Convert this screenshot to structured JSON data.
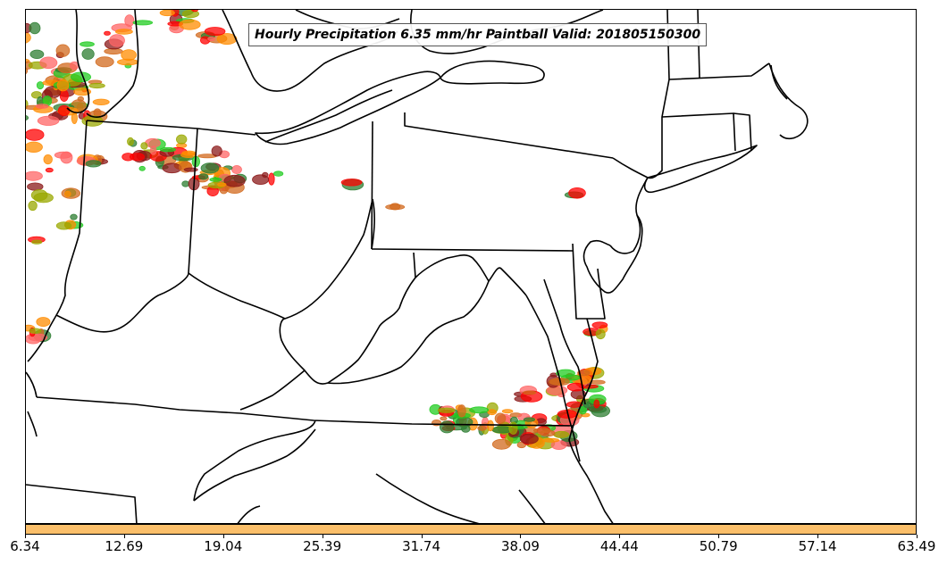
{
  "title": "Hourly Precipitation 6.35 mm/hr Paintball Valid: 201805150300",
  "colorbar": {
    "color": "#fbbf6a",
    "ticks": [
      "6.34",
      "12.69",
      "19.04",
      "25.39",
      "31.74",
      "38.09",
      "44.44",
      "50.79",
      "57.14",
      "63.49"
    ]
  },
  "member_colors": [
    "#ff0000",
    "#ff8c00",
    "#22cc22",
    "#9aa800",
    "#8b1a1a",
    "#2e7d32",
    "#ff6666",
    "#d2691e"
  ]
}
